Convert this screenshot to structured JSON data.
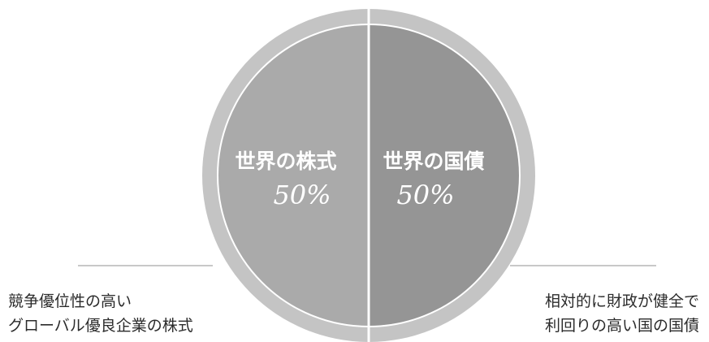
{
  "chart_data": {
    "type": "pie",
    "slices": [
      {
        "label": "世界の株式",
        "value": 50,
        "value_label": "50%",
        "color": "#aaaaaa"
      },
      {
        "label": "世界の国債",
        "value": 50,
        "value_label": "50%",
        "color": "#959595"
      }
    ],
    "outer_ring_color": "#c4c4c4",
    "legend": "none"
  },
  "notes": {
    "left": {
      "line1": "競争優位性の高い",
      "line2": "グローバル優良企業の株式"
    },
    "right": {
      "line1": "相対的に財政が健全で",
      "line2": "利回りの高い国の国債"
    }
  }
}
